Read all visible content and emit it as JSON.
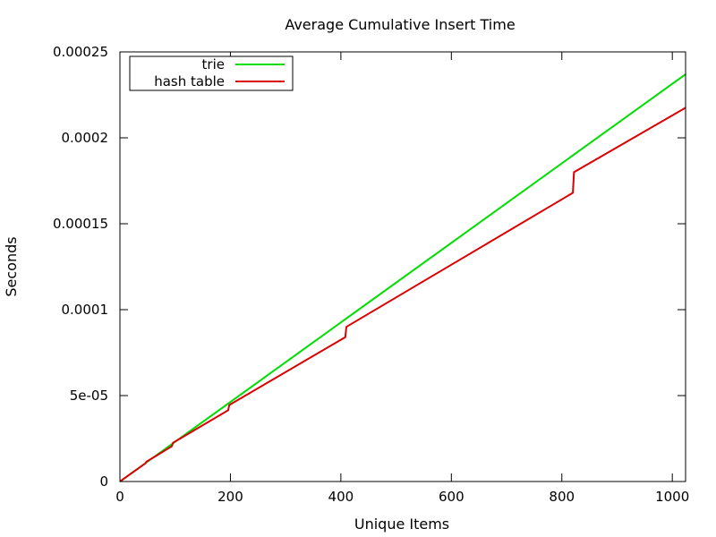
{
  "chart_data": {
    "type": "line",
    "title": "Average Cumulative Insert Time",
    "xlabel": "Unique Items",
    "ylabel": "Seconds",
    "xlim": [
      0,
      1024
    ],
    "ylim": [
      0,
      0.00025
    ],
    "xticks": [
      {
        "value": 0,
        "label": "0"
      },
      {
        "value": 200,
        "label": "200"
      },
      {
        "value": 400,
        "label": "400"
      },
      {
        "value": 600,
        "label": "600"
      },
      {
        "value": 800,
        "label": "800"
      },
      {
        "value": 1000,
        "label": "1000"
      }
    ],
    "yticks": [
      {
        "value": 0,
        "label": "0"
      },
      {
        "value": 5e-05,
        "label": "5e-05"
      },
      {
        "value": 0.0001,
        "label": "0.0001"
      },
      {
        "value": 0.00015,
        "label": "0.00015"
      },
      {
        "value": 0.0002,
        "label": "0.0002"
      },
      {
        "value": 0.00025,
        "label": "0.00025"
      }
    ],
    "grid": false,
    "legend_position": "top-left",
    "series": [
      {
        "name": "trie",
        "color": "#00dd00",
        "points": [
          [
            0,
            0
          ],
          [
            1024,
            0.000237
          ]
        ]
      },
      {
        "name": "hash table",
        "color": "#dd0000",
        "points": [
          [
            0,
            0
          ],
          [
            24,
            5.5e-06
          ],
          [
            46,
            1.05e-05
          ],
          [
            48,
            1.15e-05
          ],
          [
            94,
            2.05e-05
          ],
          [
            96,
            2.25e-05
          ],
          [
            196,
            4.15e-05
          ],
          [
            198,
            4.45e-05
          ],
          [
            408,
            8.4e-05
          ],
          [
            410,
            9e-05
          ],
          [
            820,
            0.000168
          ],
          [
            822,
            0.00018
          ],
          [
            1024,
            0.0002175
          ]
        ]
      }
    ]
  }
}
